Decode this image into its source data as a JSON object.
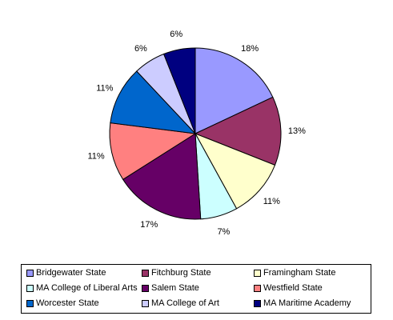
{
  "chart_data": {
    "type": "pie",
    "categories": [
      "Bridgewater State",
      "Fitchburg State",
      "Framingham State",
      "MA College of Liberal Arts",
      "Salem State",
      "Westfield State",
      "Worcester State",
      "MA College of Art",
      "MA Maritime Academy"
    ],
    "values": [
      18,
      13,
      11,
      7,
      17,
      11,
      11,
      6,
      6
    ],
    "value_labels": [
      "18%",
      "13%",
      "11%",
      "7%",
      "17%",
      "11%",
      "11%",
      "6%",
      "6%"
    ],
    "colors": [
      "#9999FF",
      "#993366",
      "#FFFFCC",
      "#CCFFFF",
      "#660066",
      "#FF8080",
      "#0066CC",
      "#CCCCFF",
      "#000080"
    ],
    "start_angle": "12 o'clock",
    "direction": "clockwise",
    "legend_position": "bottom",
    "title": "",
    "grid": false
  }
}
